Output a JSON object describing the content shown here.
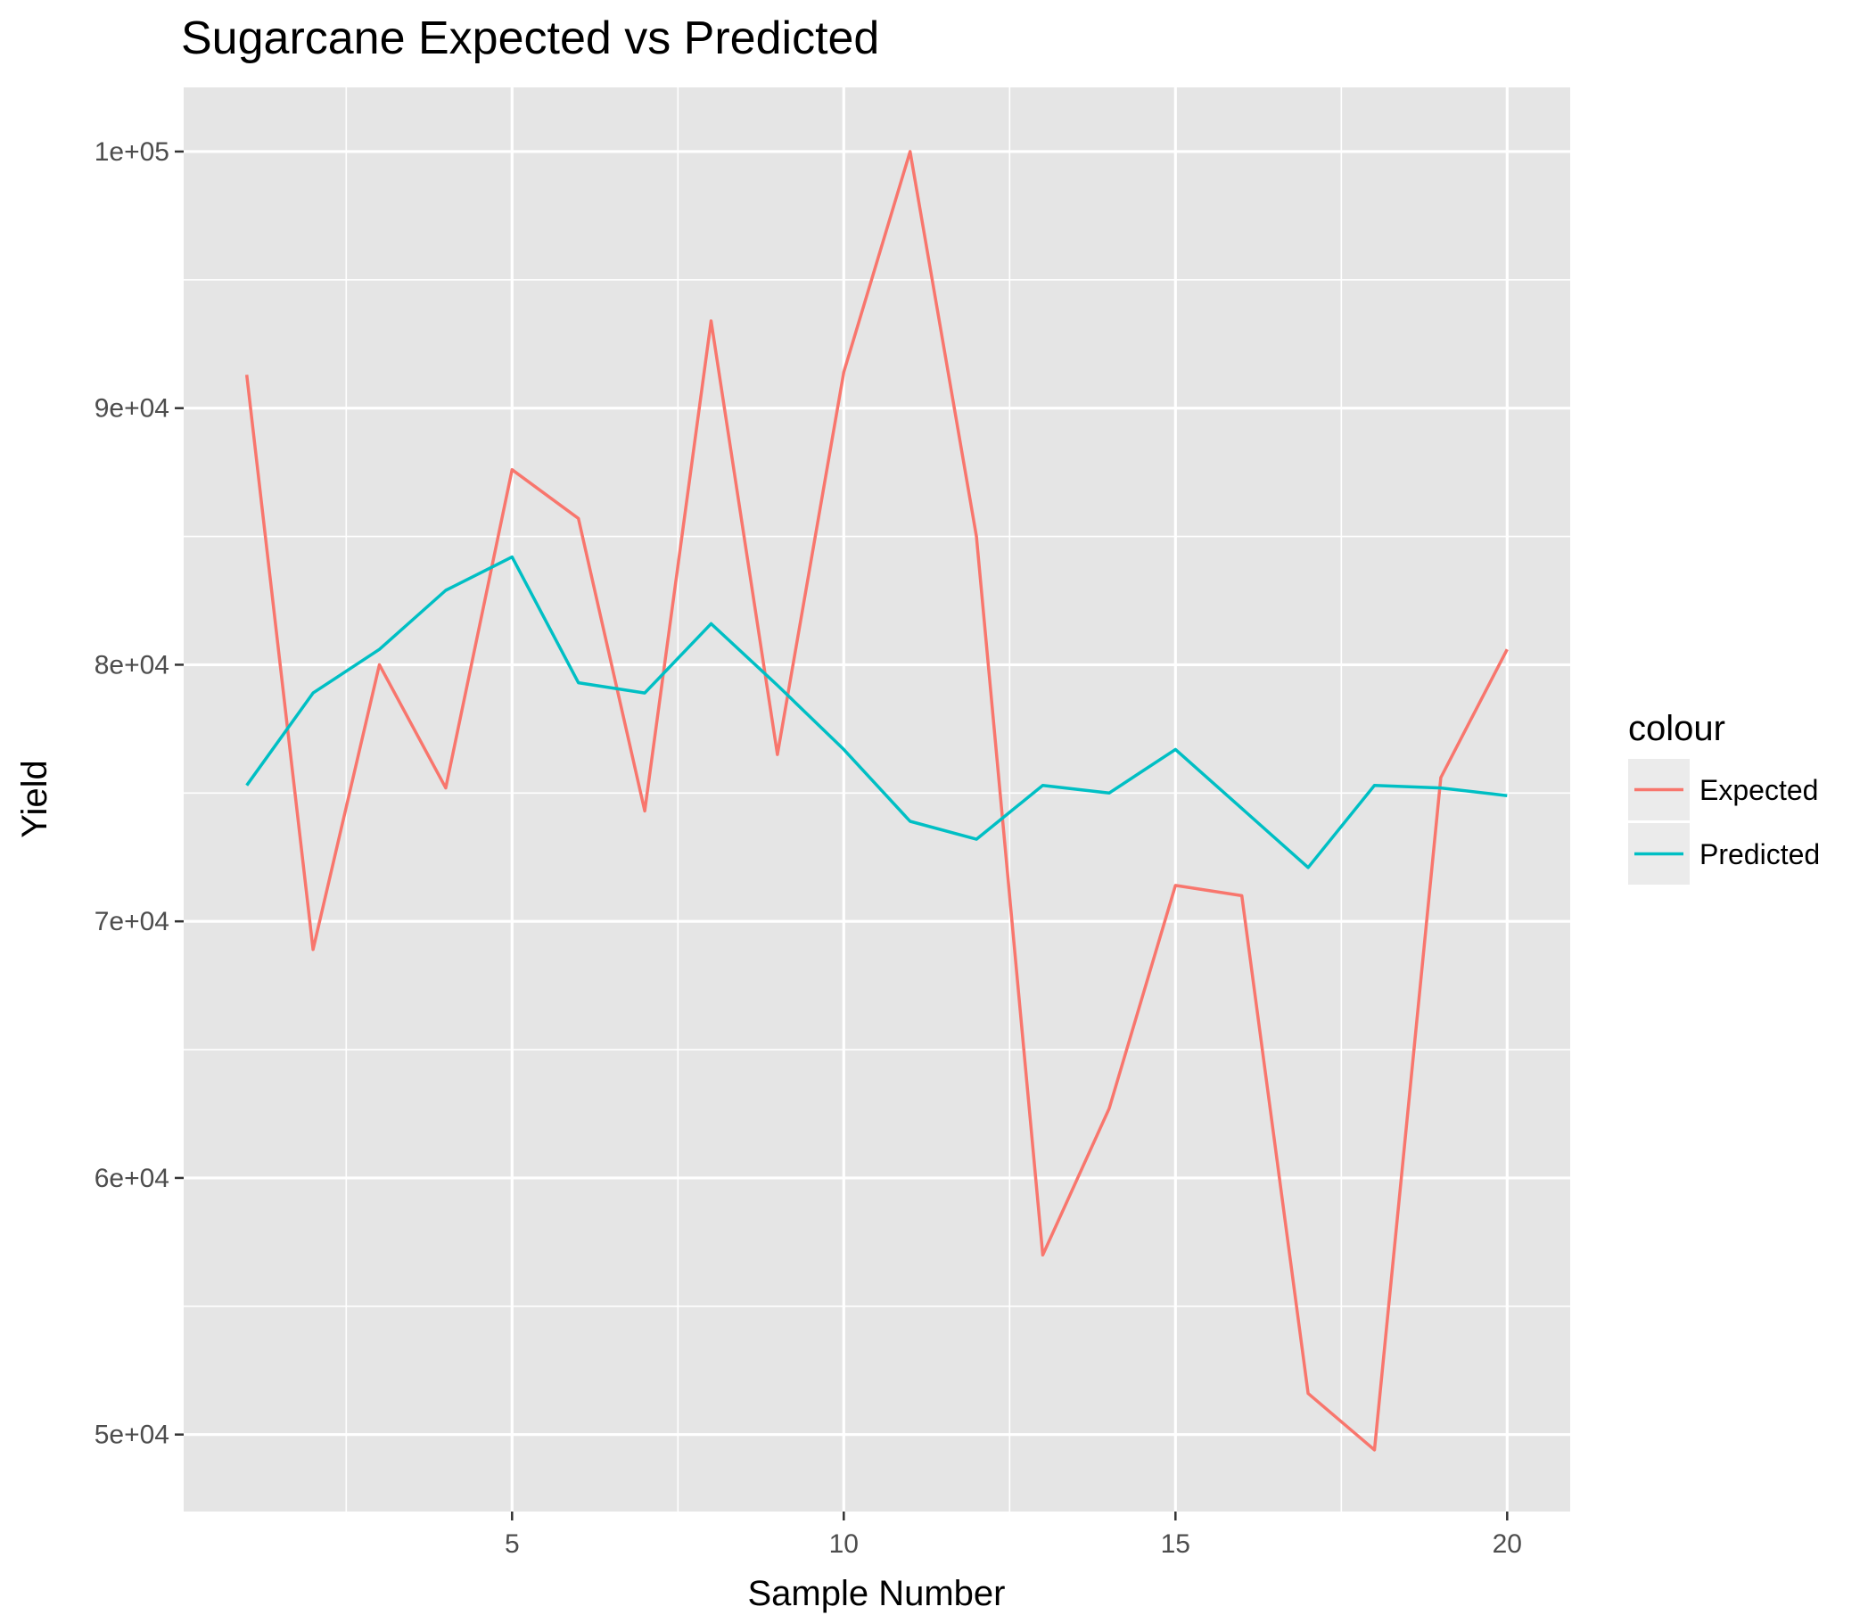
{
  "chart_data": {
    "type": "line",
    "title": "Sugarcane Expected vs Predicted",
    "xlabel": "Sample Number",
    "ylabel": "Yield",
    "x": [
      1,
      2,
      3,
      4,
      5,
      6,
      7,
      8,
      9,
      10,
      11,
      12,
      13,
      14,
      15,
      16,
      17,
      18,
      19,
      20
    ],
    "xlim": [
      0.05,
      20.95
    ],
    "ylim": [
      47000,
      102500
    ],
    "x_ticks": [
      5,
      10,
      15,
      20
    ],
    "x_tick_labels": [
      "5",
      "10",
      "15",
      "20"
    ],
    "y_ticks": [
      50000,
      60000,
      70000,
      80000,
      90000,
      100000
    ],
    "y_tick_labels": [
      "5e+04",
      "6e+04",
      "7e+04",
      "8e+04",
      "9e+04",
      "1e+05"
    ],
    "grid": true,
    "legend": {
      "title": "colour",
      "position": "right"
    },
    "series": [
      {
        "name": "Expected",
        "color": "#F8766D",
        "values": [
          91300,
          68900,
          80000,
          75200,
          87600,
          85700,
          74300,
          93400,
          76500,
          91400,
          100000,
          85000,
          57000,
          62700,
          71400,
          71000,
          51600,
          49400,
          75600,
          80600
        ]
      },
      {
        "name": "Predicted",
        "color": "#00BFC4",
        "values": [
          75300,
          78900,
          80600,
          82900,
          84200,
          79300,
          78900,
          81600,
          79200,
          76700,
          73900,
          73200,
          75300,
          75000,
          76700,
          74400,
          72100,
          75300,
          75200,
          74900
        ]
      }
    ]
  }
}
